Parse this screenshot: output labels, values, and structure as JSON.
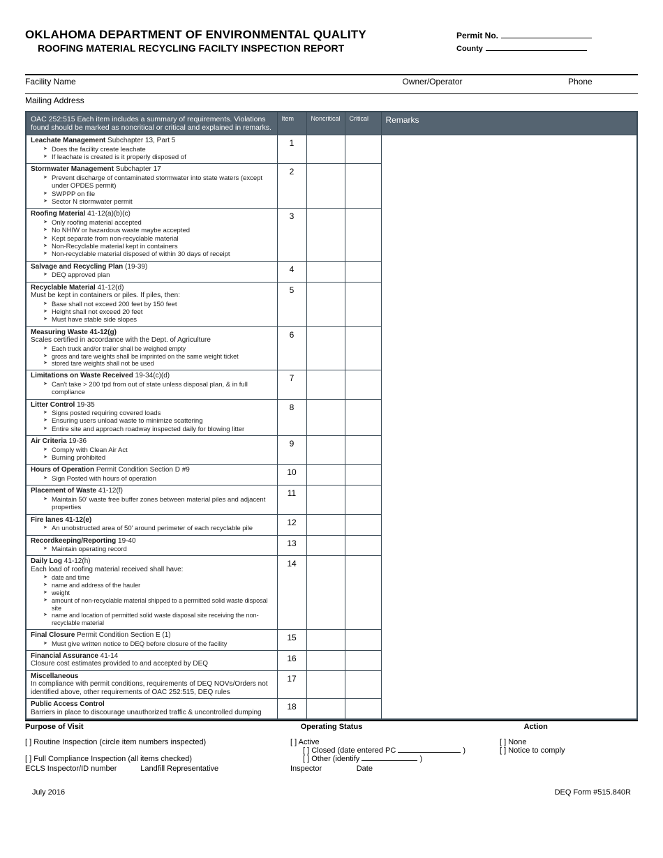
{
  "header": {
    "title1": "OKLAHOMA DEPARTMENT OF ENVIRONMENTAL QUALITY",
    "title2": "ROOFING MATERIAL RECYCLING FACILTY INSPECTION REPORT",
    "permit_label": "Permit No.",
    "county_label": "County"
  },
  "fields": {
    "facility_name": "Facility Name",
    "owner_operator": "Owner/Operator",
    "phone": "Phone",
    "mailing_address": "Mailing Address"
  },
  "table_headers": {
    "desc": "OAC 252:515 Each item includes a summary of requirements. Violations found should be marked as noncritical or critical and explained in remarks.",
    "item": "Item",
    "noncritical": "Noncritical",
    "critical": "Critical",
    "remarks": "Remarks"
  },
  "footer": {
    "purpose": "Purpose of Visit",
    "op_status": "Operating Status",
    "action": "Action",
    "routine": "[ ] Routine Inspection (circle item numbers inspected)",
    "full": "[ ] Full Compliance Inspection (all items checked)",
    "ecls_a": "ECLS Inspector/ID number",
    "ecls_b": "Landfill Representative",
    "active": "[ ] Active",
    "closed_a": "[ ] Closed (date entered PC",
    "closed_b": ")",
    "other_a": "[ ] Other (identify",
    "other_b": ")",
    "inspector": "Inspector",
    "date": "Date",
    "none": "[ ] None",
    "notice": "[ ] Notice to comply"
  },
  "page_foot": {
    "left": "July 2016",
    "right": "DEQ Form #515.840R"
  },
  "rows": [
    {
      "n": "1",
      "t": "Leachate Management",
      "s": " Subchapter 13, Part 5",
      "items": [
        "Does the facility create leachate",
        "If leachate is created is it properly disposed of"
      ]
    },
    {
      "n": "2",
      "t": "Stormwater Management",
      "s": " Subchapter 17",
      "items": [
        "Prevent discharge of contaminated stormwater into state waters (except under OPDES permit)",
        "SWPPP on file",
        "Sector N stormwater permit"
      ]
    },
    {
      "n": "3",
      "t": "Roofing Material",
      "s": " 41-12(a)(b)(c)",
      "items": [
        "Only roofing material accepted",
        "No NHIW or hazardous waste maybe accepted",
        "Kept separate from non-recyclable material",
        "Non-Recyclable material kept in containers",
        "Non-recyclable material disposed of within 30 days of receipt"
      ]
    },
    {
      "n": "4",
      "t": "Salvage and Recycling Plan",
      "s": " (19-39)",
      "items": [
        "DEQ approved plan"
      ]
    },
    {
      "n": "5",
      "t": "Recyclable Material",
      "s": " 41-12(d)",
      "pre": "Must be kept in containers or piles.  If piles, then:",
      "items": [
        "Base shall not exceed 200 feet by 150 feet",
        "Height shall not exceed 20 feet",
        "Must have stable side slopes"
      ]
    },
    {
      "n": "6",
      "t": "Measuring Waste 41-12(g)",
      "s": "",
      "pre": "Scales certified in accordance with the Dept. of Agriculture",
      "items": [
        "Each truck and/or trailer shall be weighed empty",
        "gross and tare weights shall be imprinted on the same weight ticket",
        "stored tare weights shall not be used"
      ],
      "sm": true
    },
    {
      "n": "7",
      "t": "Limitations on Waste Received",
      "s": " 19-34(c)(d)",
      "items": [
        "Can't take > 200 tpd from out of state unless disposal plan, & in full compliance"
      ]
    },
    {
      "n": "8",
      "t": "Litter Control",
      "s": " 19-35",
      "items": [
        "Signs posted requiring covered loads",
        "Ensuring users unload waste to minimize scattering",
        "Entire site and approach roadway inspected daily for blowing litter"
      ]
    },
    {
      "n": "9",
      "t": "Air Criteria",
      "s": " 19-36",
      "items": [
        "Comply with Clean Air Act",
        "Burning prohibited"
      ]
    },
    {
      "n": "10",
      "t": "Hours of Operation",
      "s": " Permit Condition Section D #9",
      "items": [
        "Sign Posted with hours of operation"
      ]
    },
    {
      "n": "11",
      "t": "Placement of Waste",
      "s": " 41-12(f)",
      "items": [
        "Maintain 50' waste free buffer zones between material piles and adjacent properties"
      ]
    },
    {
      "n": "12",
      "t": "Fire lanes 41-12(e)",
      "s": "",
      "items": [
        "An unobstructed area of 50' around perimeter of each recyclable pile"
      ]
    },
    {
      "n": "13",
      "t": "Recordkeeping/Reporting",
      "s": " 19-40",
      "items": [
        "Maintain operating record"
      ]
    },
    {
      "n": "14",
      "t": "Daily Log",
      "s": " 41-12(h)",
      "pre": "Each load of roofing material received shall have:",
      "items": [
        "date and time",
        "name and address of the hauler",
        "weight",
        "amount of non-recyclable material shipped to a permitted solid waste disposal site",
        "name and location of permitted solid waste disposal site receiving the non-recyclable material"
      ],
      "sm": true
    },
    {
      "n": "15",
      "t": "Final Closure",
      "s": " Permit Condition Section E (1)",
      "items": [
        "Must give written notice to DEQ before closure of the facility"
      ]
    },
    {
      "n": "16",
      "t": "Financial Assurance",
      "s": " 41-14",
      "pre": "Closure cost estimates provided to and accepted by DEQ",
      "items": []
    },
    {
      "n": "17",
      "t": "Miscellaneous",
      "s": "",
      "pre": "In compliance with permit conditions, requirements of DEQ NOVs/Orders not identified above, other requirements of OAC 252:515, DEQ rules",
      "items": []
    },
    {
      "n": "18",
      "t": "Public Access Control",
      "s": "",
      "pre": "Barriers in place to discourage unauthorized traffic & uncontrolled dumping",
      "items": []
    }
  ]
}
